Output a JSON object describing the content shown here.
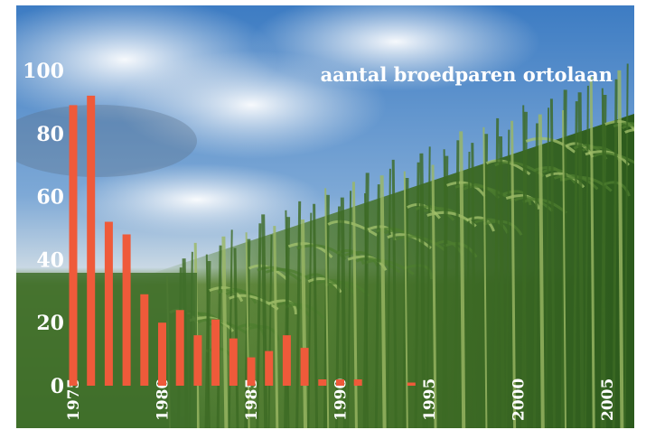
{
  "chart_data": {
    "type": "bar",
    "title": "aantal broedparen ortolaan",
    "xlabel": "",
    "ylabel": "",
    "ylim": [
      0,
      100
    ],
    "xlim": [
      1975,
      2005
    ],
    "y_ticks": [
      "0",
      "20",
      "40",
      "60",
      "80",
      "100"
    ],
    "x_ticks": [
      "1975",
      "1980",
      "1985",
      "1990",
      "1995",
      "2000",
      "2005"
    ],
    "grid": false,
    "bar_color": "#ef5a3a",
    "x": [
      1975,
      1976,
      1977,
      1978,
      1979,
      1980,
      1981,
      1982,
      1983,
      1984,
      1985,
      1986,
      1987,
      1988,
      1989,
      1990,
      1991,
      1994
    ],
    "values": [
      89,
      92,
      52,
      48,
      29,
      20,
      24,
      16,
      21,
      15,
      9,
      11,
      16,
      12,
      2,
      2,
      2,
      1
    ]
  },
  "background": {
    "description_colors": {
      "sky_top": "#3f7fc4",
      "sky_light": "#a9c6e2",
      "cloud": "#e8edf2",
      "field_green": "#4f7d33",
      "corn_dark": "#2f5a1f",
      "corn_light": "#8fb35a"
    }
  }
}
